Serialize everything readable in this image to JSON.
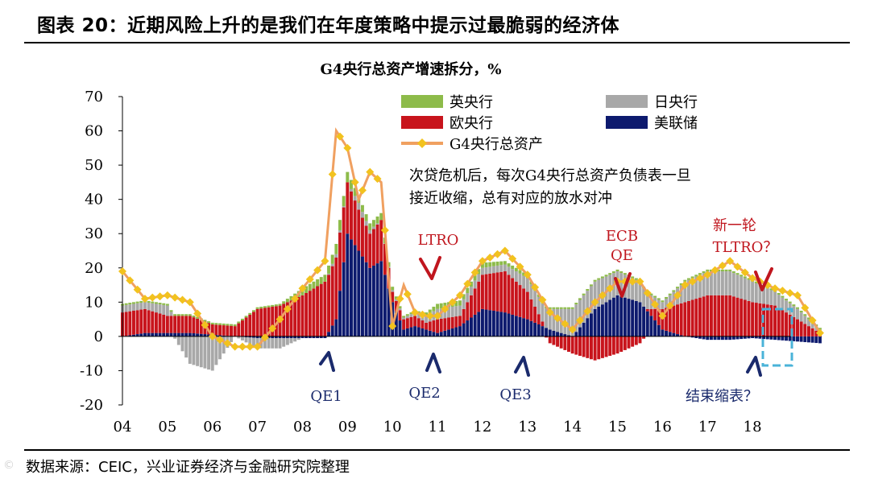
{
  "figure": {
    "title": "图表 20：近期风险上升的是我们在年度策略中提示过最脆弱的经济体",
    "source_label": "数据来源：",
    "source_text": "CEIC，兴业证券经济与金融研究院整理",
    "watermark": "©"
  },
  "chart_data": {
    "type": "bar",
    "stacked": true,
    "title": "G4央行总资产增速拆分，%",
    "xlabel": "",
    "ylabel": "",
    "ylim": [
      -20,
      70
    ],
    "yticks": [
      70,
      60,
      50,
      40,
      30,
      20,
      10,
      0,
      -10,
      -20
    ],
    "x_tick_labels": [
      "04",
      "05",
      "06",
      "07",
      "08",
      "09",
      "10",
      "11",
      "12",
      "13",
      "14",
      "15",
      "16",
      "17",
      "18"
    ],
    "x_start_year": 2004,
    "months_per_year": 12,
    "anchor_months": [
      0,
      6,
      12,
      18,
      24,
      30,
      36,
      42,
      48,
      54,
      57,
      60,
      63,
      66,
      69,
      72,
      75,
      78,
      81,
      84,
      90,
      96,
      102,
      108,
      114,
      120,
      126,
      132,
      138,
      144,
      150,
      156,
      162,
      168,
      174,
      180,
      186
    ],
    "series": [
      {
        "name": "美联储",
        "color": "#0d1a6e",
        "anchors": [
          0,
          1,
          1,
          1,
          0.5,
          0,
          -0.5,
          -0.5,
          -0.5,
          -0.5,
          5,
          30,
          25,
          20,
          22,
          10,
          2,
          3,
          2,
          1,
          3,
          8,
          7,
          5,
          2,
          0,
          8,
          12,
          10,
          2,
          0,
          -1,
          -1,
          -0.5,
          -1,
          -1.5,
          -2
        ]
      },
      {
        "name": "欧央行",
        "color": "#c8141c",
        "anchors": [
          7,
          7,
          5,
          5,
          3,
          3,
          8,
          9,
          12,
          16,
          18,
          15,
          12,
          10,
          12,
          3,
          3,
          3,
          2,
          4,
          3,
          10,
          12,
          8,
          -2,
          -5,
          -7,
          -5,
          -2,
          6,
          10,
          12,
          12,
          10,
          9,
          5,
          1
        ]
      },
      {
        "name": "日央行",
        "color": "#a8a8a8",
        "anchors": [
          2,
          2,
          3,
          -8,
          -10,
          0,
          -3,
          -3,
          0,
          0,
          1,
          0,
          2,
          1,
          0,
          0.5,
          0.5,
          1,
          2,
          3,
          3,
          2,
          2,
          4,
          6,
          8,
          8,
          7,
          6,
          2,
          6,
          7,
          7,
          6,
          4,
          3,
          1
        ]
      },
      {
        "name": "英央行",
        "color": "#8dbb4a",
        "anchors": [
          0.5,
          0.5,
          0.5,
          0.5,
          0.5,
          0.5,
          0.5,
          0.5,
          2,
          2,
          3,
          3,
          2,
          2,
          2,
          1,
          0.5,
          0.5,
          1,
          1.5,
          1.5,
          1.5,
          1,
          1,
          0.5,
          0.5,
          0.5,
          0.5,
          0.5,
          0.5,
          0.5,
          0.5,
          0.5,
          0.5,
          0.5,
          0.5,
          0.5
        ]
      }
    ],
    "total_series": {
      "name": "G4央行总资产",
      "color": "#f0a060",
      "marker_color": "#f2c21e",
      "anchors": [
        19,
        11,
        12,
        10,
        0,
        -3,
        -3,
        5,
        14,
        22,
        60,
        55,
        40,
        48,
        45,
        3,
        15,
        7,
        6,
        6,
        12,
        22,
        25,
        18,
        7,
        2,
        10,
        16,
        16,
        6,
        15,
        18,
        22,
        17,
        14,
        12,
        1
      ]
    },
    "legend": [
      "英央行",
      "日央行",
      "欧央行",
      "美联储",
      "G4央行总资产"
    ],
    "legend_position": "top",
    "annotations": {
      "note_line1": "次贷危机后，每次G4央行总资产负债表一旦",
      "note_line2": "接近收缩，总有对应的放水对冲",
      "ltro": "LTRO",
      "ecb_qe_1": "ECB",
      "ecb_qe_2": "QE",
      "tltro_1": "新一轮",
      "tltro_2": "TLTRO？",
      "qe1": "QE1",
      "qe2": "QE2",
      "qe3": "QE3",
      "taper": "结束缩表？"
    },
    "colors": {
      "arrow_red": "#c0161e",
      "arrow_blue": "#1a2a6c",
      "highlight_box": "#4ab3d8"
    }
  }
}
